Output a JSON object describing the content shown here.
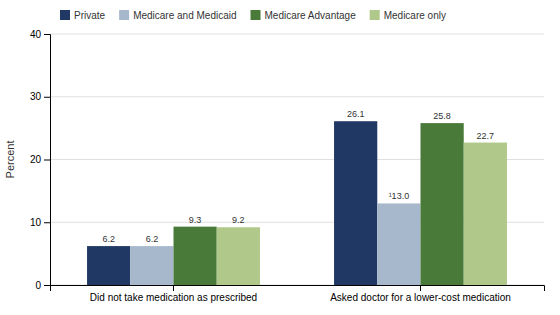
{
  "chart_data": {
    "type": "bar",
    "categories": [
      "Did not take medication as prescribed",
      "Asked doctor for a lower-cost medication"
    ],
    "series": [
      {
        "name": "Private",
        "color": "#1f3864",
        "values": [
          6.2,
          26.1
        ],
        "value_labels": [
          "6.2",
          "26.1"
        ]
      },
      {
        "name": "Medicare and Medicaid",
        "color": "#a8b8cc",
        "values": [
          6.2,
          13.0
        ],
        "value_labels": [
          "6.2",
          "¹13.0"
        ]
      },
      {
        "name": "Medicare Advantage",
        "color": "#4a7a3a",
        "values": [
          9.3,
          25.8
        ],
        "value_labels": [
          "9.3",
          "25.8"
        ]
      },
      {
        "name": "Medicare only",
        "color": "#b0c88a",
        "values": [
          9.2,
          22.7
        ],
        "value_labels": [
          "9.2",
          "22.7"
        ]
      }
    ],
    "ylabel": "Percent",
    "ylim": [
      0,
      40
    ],
    "yticks": [
      0,
      10,
      20,
      30,
      40
    ],
    "grid": true,
    "legend": "upper left",
    "data_labels": true
  }
}
